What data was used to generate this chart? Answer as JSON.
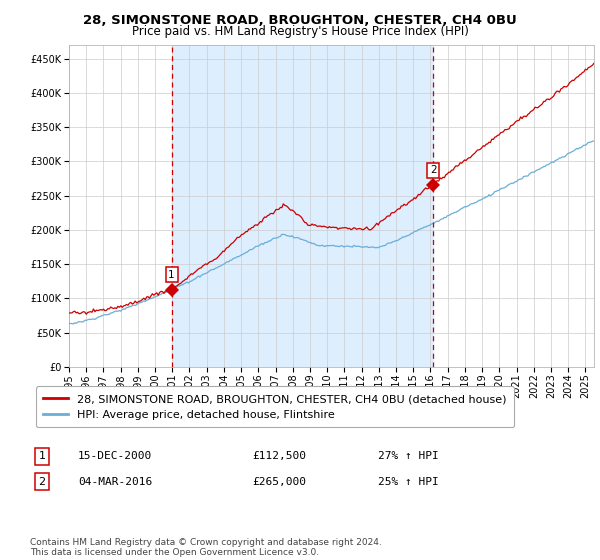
{
  "title": "28, SIMONSTONE ROAD, BROUGHTON, CHESTER, CH4 0BU",
  "subtitle": "Price paid vs. HM Land Registry's House Price Index (HPI)",
  "ytick_values": [
    0,
    50000,
    100000,
    150000,
    200000,
    250000,
    300000,
    350000,
    400000,
    450000
  ],
  "ylim": [
    0,
    470000
  ],
  "xlim_start": 1995.0,
  "xlim_end": 2025.5,
  "sale1_date": 2000.96,
  "sale1_price": 112500,
  "sale2_date": 2016.17,
  "sale2_price": 265000,
  "sale1_label": "1",
  "sale2_label": "2",
  "legend_line1": "28, SIMONSTONE ROAD, BROUGHTON, CHESTER, CH4 0BU (detached house)",
  "legend_line2": "HPI: Average price, detached house, Flintshire",
  "table_row1": [
    "1",
    "15-DEC-2000",
    "£112,500",
    "27% ↑ HPI"
  ],
  "table_row2": [
    "2",
    "04-MAR-2016",
    "£265,000",
    "25% ↑ HPI"
  ],
  "footnote": "Contains HM Land Registry data © Crown copyright and database right 2024.\nThis data is licensed under the Open Government Licence v3.0.",
  "line_color_red": "#cc0000",
  "line_color_blue": "#6baed6",
  "shade_color": "#ddeeff",
  "vline_color": "#cc0000",
  "grid_color": "#cccccc",
  "background_color": "#ffffff",
  "plot_bg_color": "#ffffff",
  "title_fontsize": 9.5,
  "subtitle_fontsize": 8.5,
  "tick_fontsize": 7,
  "legend_fontsize": 8,
  "table_fontsize": 8,
  "footnote_fontsize": 6.5
}
